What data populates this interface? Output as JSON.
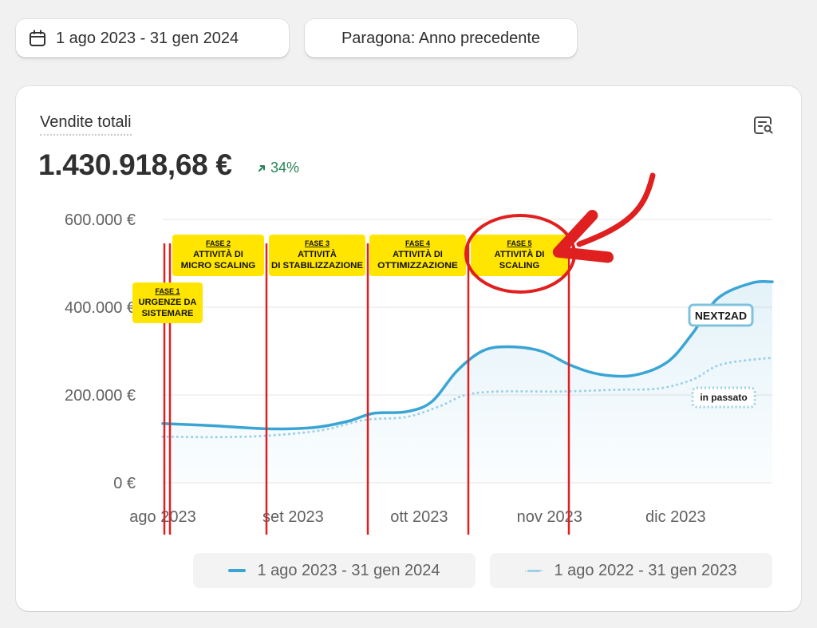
{
  "toolbar": {
    "date_range_label": "1 ago 2023 - 31 gen 2024",
    "calendar_icon": "calendar-icon",
    "compare_label": "Paragona: Anno precedente"
  },
  "card": {
    "title": "Vendite totali",
    "value": "1.430.918,68 €",
    "delta": "34%",
    "delta_icon": "arrow-up-right-icon",
    "delta_color": "#29845a",
    "explore_icon": "chart-search-icon"
  },
  "chart_data": {
    "type": "line",
    "y_ticks": [
      "600.000 €",
      "400.000 €",
      "200.000 €",
      "0 €"
    ],
    "y_tick_values": [
      600000,
      400000,
      200000,
      0
    ],
    "ylim": [
      0,
      600000
    ],
    "x_ticks": [
      "ago 2023",
      "set 2023",
      "ott 2023",
      "nov 2023",
      "dic 2023"
    ],
    "x_days": [
      0,
      31,
      61,
      92,
      122,
      153
    ],
    "grid": true,
    "series": [
      {
        "name": "1 ago 2023 - 31 gen 2024",
        "color": "#3aa5d4",
        "style": "solid",
        "points": [
          [
            0,
            135000
          ],
          [
            12,
            130000
          ],
          [
            25,
            123000
          ],
          [
            36,
            126000
          ],
          [
            44,
            140000
          ],
          [
            50,
            158000
          ],
          [
            58,
            162000
          ],
          [
            64,
            185000
          ],
          [
            70,
            255000
          ],
          [
            76,
            300000
          ],
          [
            82,
            310000
          ],
          [
            90,
            300000
          ],
          [
            97,
            268000
          ],
          [
            104,
            247000
          ],
          [
            112,
            245000
          ],
          [
            120,
            275000
          ],
          [
            126,
            340000
          ],
          [
            132,
            420000
          ],
          [
            140,
            455000
          ],
          [
            145,
            458000
          ]
        ]
      },
      {
        "name": "1 ago 2022 - 31 gen 2023",
        "color": "#9bd0e6",
        "style": "dotted",
        "points": [
          [
            0,
            105000
          ],
          [
            14,
            104000
          ],
          [
            26,
            108000
          ],
          [
            38,
            120000
          ],
          [
            48,
            143000
          ],
          [
            58,
            150000
          ],
          [
            66,
            175000
          ],
          [
            72,
            200000
          ],
          [
            80,
            208000
          ],
          [
            95,
            208000
          ],
          [
            108,
            212000
          ],
          [
            118,
            215000
          ],
          [
            126,
            235000
          ],
          [
            133,
            270000
          ],
          [
            145,
            285000
          ]
        ]
      }
    ]
  },
  "annotations": {
    "phases": [
      {
        "num": "FASE 1",
        "line1": "URGENZE DA",
        "line2": "SISTEMARE"
      },
      {
        "num": "FASE 2",
        "line1": "ATTIVITÀ DI",
        "line2": "MICRO SCALING"
      },
      {
        "num": "FASE 3",
        "line1": "ATTIVITÀ",
        "line2": "DI STABILIZZAZIONE"
      },
      {
        "num": "FASE 4",
        "line1": "ATTIVITÀ DI",
        "line2": "OTTIMIZZAZIONE"
      },
      {
        "num": "FASE 5",
        "line1": "ATTIVITÀ DI",
        "line2": "SCALING"
      }
    ],
    "phase_fill": "#ffe500",
    "phase_line_color": "#e02020",
    "brand_label": "NEXT2AD",
    "brand_accent": "#e02020",
    "past_label": "in passato"
  },
  "legend": {
    "current": "1 ago 2023 - 31 gen 2024",
    "previous": "1 ago 2022 - 31 gen 2023"
  }
}
